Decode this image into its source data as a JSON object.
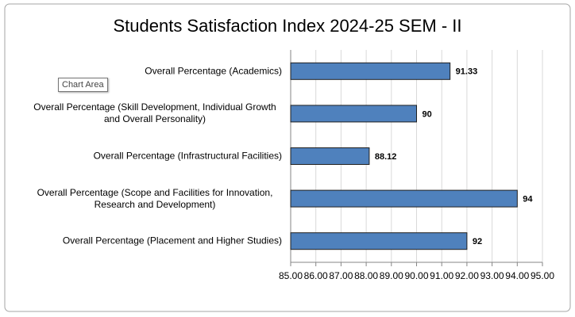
{
  "chart_data": {
    "type": "bar",
    "orientation": "horizontal",
    "title": "Students Satisfaction Index 2024-25 SEM - II",
    "categories": [
      "Overall Percentage (Academics)",
      "Overall Percentage (Skill Development, Individual Growth and Overall Personality)",
      "Overall Percentage (Infrastructural Facilities)",
      "Overall Percentage (Scope and Facilities for Innovation, Research and Development)",
      "Overall Percentage (Placement and Higher Studies)"
    ],
    "values": [
      91.33,
      90,
      88.12,
      94,
      92
    ],
    "color": "#4f81bd",
    "xlim": [
      85,
      95
    ],
    "xticks": [
      {
        "value": 85,
        "label": "85.00"
      },
      {
        "value": 86,
        "label": "86.00"
      },
      {
        "value": 87,
        "label": "87.00"
      },
      {
        "value": 88,
        "label": "88.00"
      },
      {
        "value": 89,
        "label": "89.00"
      },
      {
        "value": 90,
        "label": "90.00"
      },
      {
        "value": 91,
        "label": "91.00"
      },
      {
        "value": 92,
        "label": "92.00"
      },
      {
        "value": 93,
        "label": "93.00"
      },
      {
        "value": 94,
        "label": "94.00"
      },
      {
        "value": 95,
        "label": "95.00"
      }
    ],
    "grid": true,
    "tooltip": "Chart Area"
  }
}
